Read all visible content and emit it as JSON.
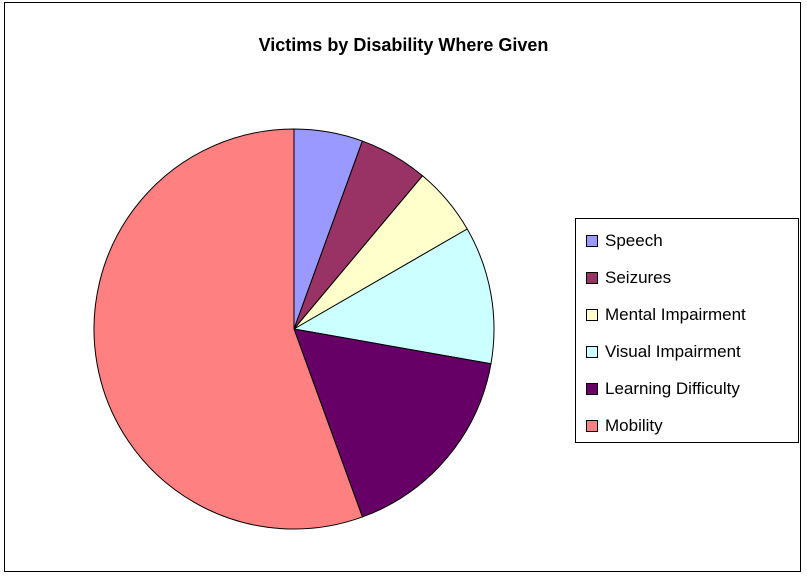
{
  "chart_data": {
    "type": "pie",
    "title": "Victims by Disability Where Given",
    "legend_position": "right",
    "slices": [
      {
        "label": "Speech",
        "value": 1,
        "color": "#9999ff"
      },
      {
        "label": "Seizures",
        "value": 1,
        "color": "#993366"
      },
      {
        "label": "Mental Impairment",
        "value": 1,
        "color": "#ffffcc"
      },
      {
        "label": "Visual Impairment",
        "value": 2,
        "color": "#ccffff"
      },
      {
        "label": "Learning Difficulty",
        "value": 3,
        "color": "#660066"
      },
      {
        "label": "Mobility",
        "value": 10,
        "color": "#ff8080"
      }
    ]
  }
}
